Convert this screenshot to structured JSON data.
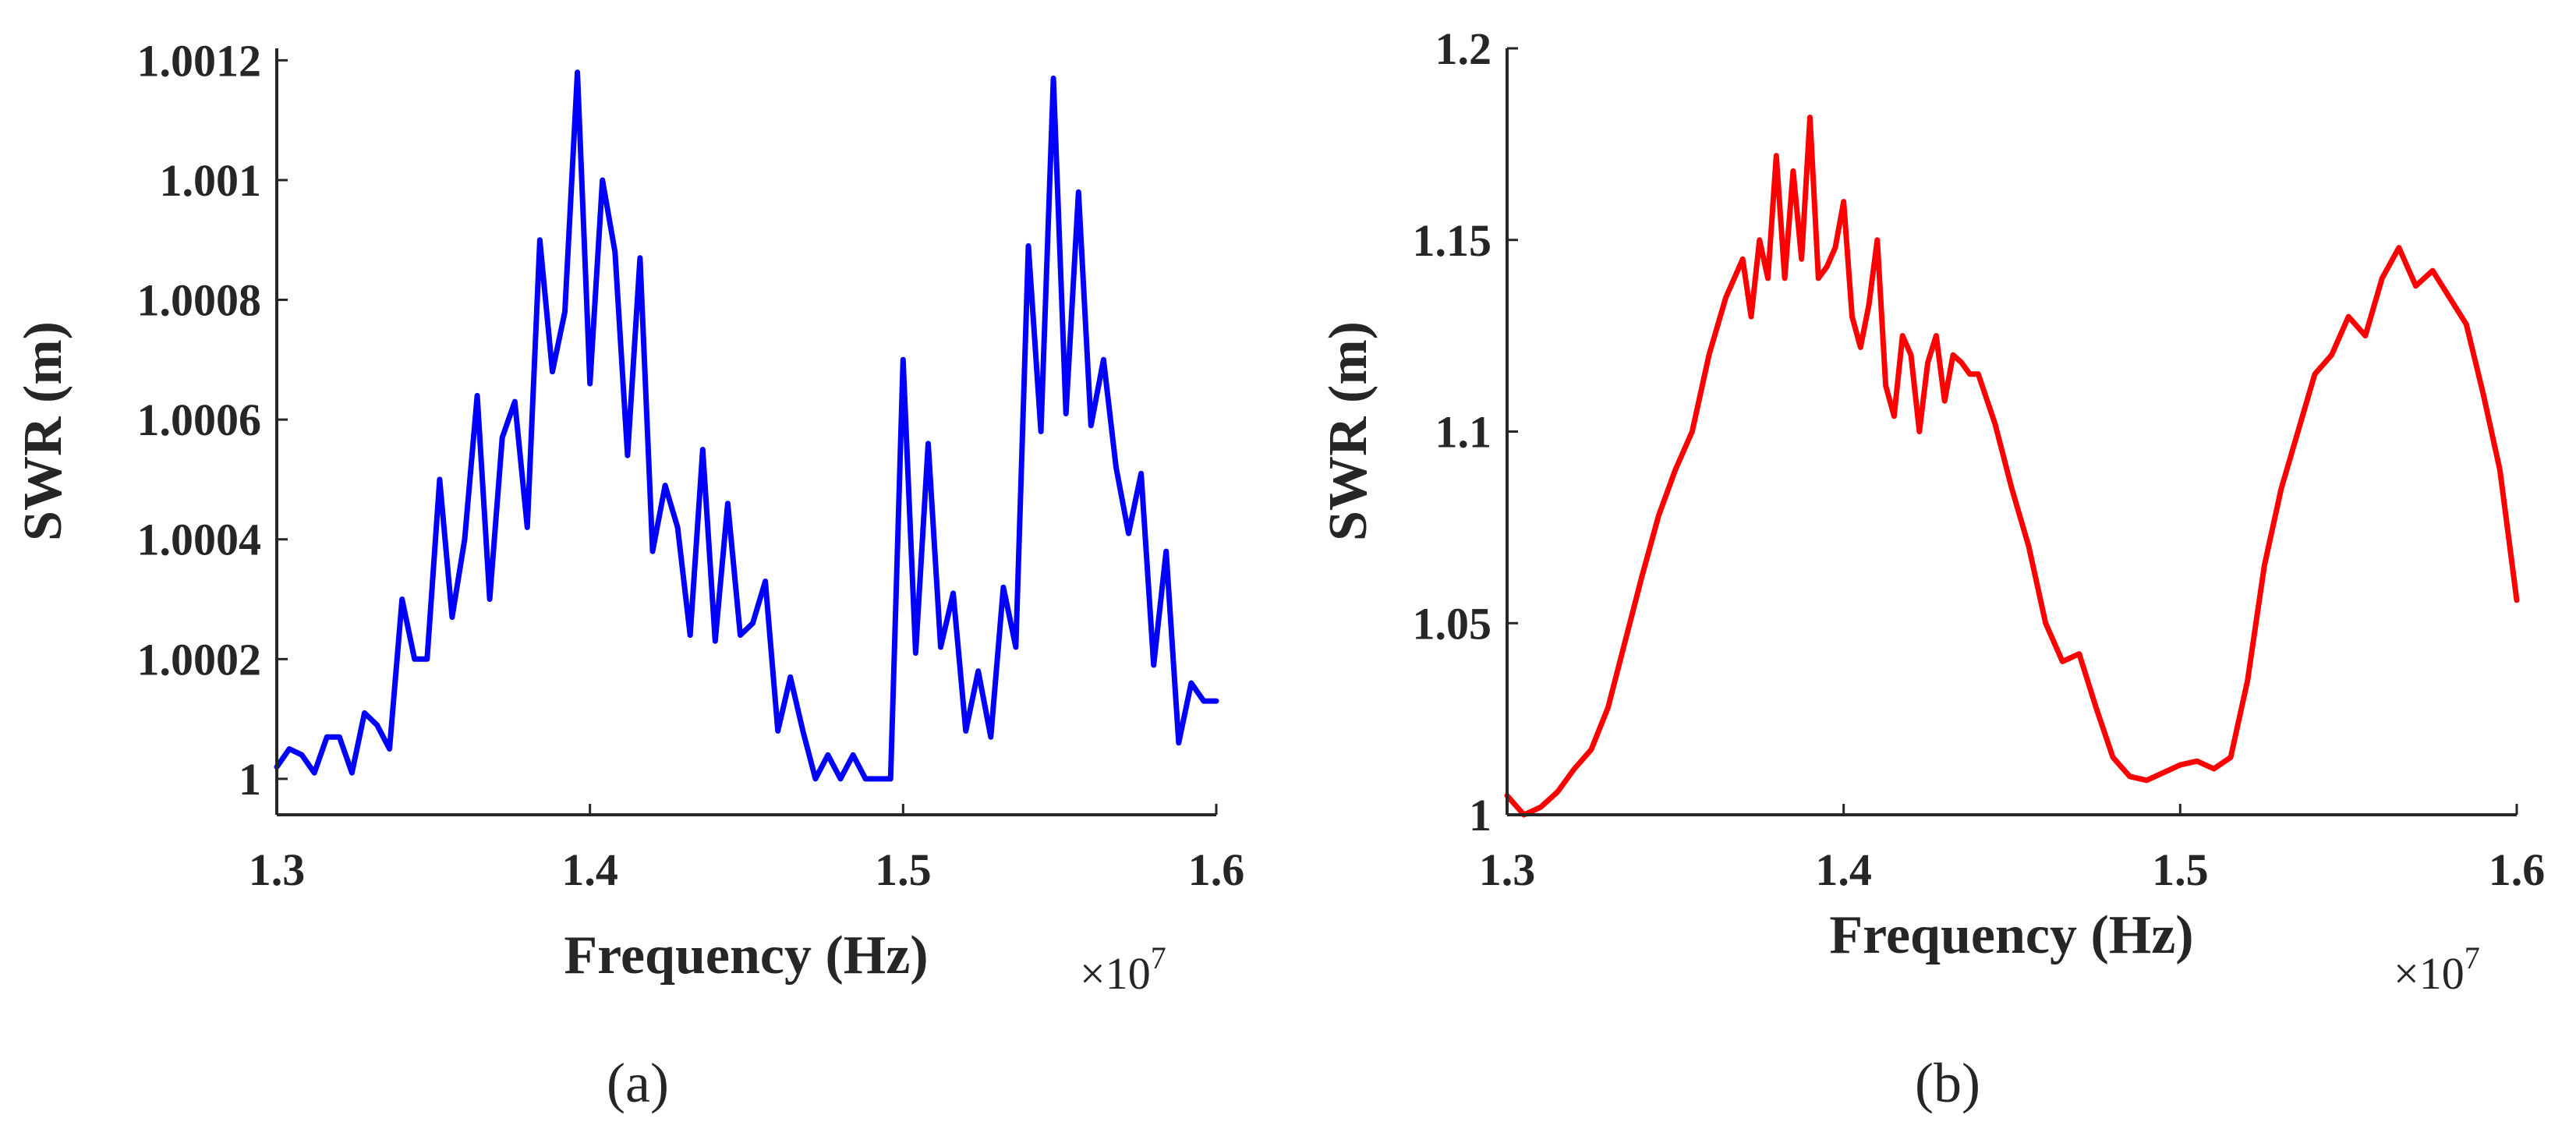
{
  "chart_data": [
    {
      "type": "line",
      "panel_label": "(a)",
      "xlabel": "Frequency (Hz)",
      "ylabel": "SWR (m)",
      "x_multiplier": "×10",
      "x_multiplier_exp": "7",
      "xlim": [
        13000000,
        16000000
      ],
      "ylim": [
        0.99994,
        1.00122
      ],
      "xticks": [
        13000000,
        14000000,
        15000000,
        16000000
      ],
      "xtick_labels": [
        "1.3",
        "1.4",
        "1.5",
        "1.6"
      ],
      "yticks": [
        1.0,
        1.0002,
        1.0004,
        1.0006,
        1.0008,
        1.001,
        1.0012
      ],
      "ytick_labels": [
        "1",
        "1.0002",
        "1.0004",
        "1.0006",
        "1.0008",
        "1.001",
        "1.0012"
      ],
      "line_color": "#0000ff",
      "series": [
        {
          "x": [
            13000000,
            13040000,
            13080000,
            13120000,
            13160000,
            13200000,
            13240000,
            13280000,
            13320000,
            13360000,
            13400000,
            13440000,
            13480000,
            13520000,
            13560000,
            13600000,
            13640000,
            13680000,
            13720000,
            13760000,
            13800000,
            13840000,
            13880000,
            13920000,
            13960000,
            14000000,
            14040000,
            14080000,
            14120000,
            14160000,
            14200000,
            14240000,
            14280000,
            14320000,
            14360000,
            14400000,
            14440000,
            14480000,
            14520000,
            14560000,
            14600000,
            14640000,
            14680000,
            14720000,
            14760000,
            14800000,
            14840000,
            14880000,
            14920000,
            14960000,
            15000000,
            15040000,
            15080000,
            15120000,
            15160000,
            15200000,
            15240000,
            15280000,
            15320000,
            15360000,
            15400000,
            15440000,
            15480000,
            15520000,
            15560000,
            15600000,
            15640000,
            15680000,
            15720000,
            15760000,
            15800000,
            15840000,
            15880000,
            15920000,
            15960000,
            16000000
          ],
          "y": [
            1.00002,
            1.00005,
            1.00004,
            1.00001,
            1.00007,
            1.00007,
            1.00001,
            1.00011,
            1.00009,
            1.00005,
            1.0003,
            1.0002,
            1.0002,
            1.0005,
            1.00027,
            1.0004,
            1.00064,
            1.0003,
            1.00057,
            1.00063,
            1.00042,
            1.0009,
            1.00068,
            1.00078,
            1.00118,
            1.00066,
            1.001,
            1.00088,
            1.00054,
            1.00087,
            1.00038,
            1.00049,
            1.00042,
            1.00024,
            1.00055,
            1.00023,
            1.00046,
            1.00024,
            1.00026,
            1.00033,
            1.00008,
            1.00017,
            1.00008,
            1.0,
            1.00004,
            1.0,
            1.00004,
            1.0,
            1.0,
            1.0,
            1.0007,
            1.00021,
            1.00056,
            1.00022,
            1.00031,
            1.00008,
            1.00018,
            1.00007,
            1.00032,
            1.00022,
            1.00089,
            1.00058,
            1.00117,
            1.00061,
            1.00098,
            1.00059,
            1.0007,
            1.00052,
            1.00041,
            1.00051,
            1.00019,
            1.00038,
            1.00006,
            1.00016,
            1.00013,
            1.00013
          ]
        }
      ]
    },
    {
      "type": "line",
      "panel_label": "(b)",
      "xlabel": "Frequency (Hz)",
      "ylabel": "SWR (m)",
      "x_multiplier": "×10",
      "x_multiplier_exp": "7",
      "xlim": [
        13000000,
        16000000
      ],
      "ylim": [
        1.0,
        1.2
      ],
      "xticks": [
        13000000,
        14000000,
        15000000,
        16000000
      ],
      "xtick_labels": [
        "1.3",
        "1.4",
        "1.5",
        "1.6"
      ],
      "yticks": [
        1.0,
        1.05,
        1.1,
        1.15,
        1.2
      ],
      "ytick_labels": [
        "1",
        "1.05",
        "1.1",
        "1.15",
        "1.2"
      ],
      "line_color": "#ff0000",
      "series": [
        {
          "x": [
            13000000,
            13050000,
            13100000,
            13150000,
            13200000,
            13250000,
            13300000,
            13350000,
            13400000,
            13450000,
            13500000,
            13550000,
            13600000,
            13650000,
            13700000,
            13725000,
            13750000,
            13775000,
            13800000,
            13825000,
            13850000,
            13875000,
            13900000,
            13925000,
            13950000,
            13975000,
            14000000,
            14025000,
            14050000,
            14075000,
            14100000,
            14125000,
            14150000,
            14175000,
            14200000,
            14225000,
            14250000,
            14275000,
            14300000,
            14325000,
            14350000,
            14375000,
            14400000,
            14450000,
            14500000,
            14550000,
            14600000,
            14650000,
            14700000,
            14750000,
            14800000,
            14850000,
            14900000,
            14950000,
            15000000,
            15050000,
            15100000,
            15150000,
            15200000,
            15250000,
            15300000,
            15350000,
            15400000,
            15450000,
            15500000,
            15550000,
            15600000,
            15650000,
            15700000,
            15750000,
            15800000,
            15850000,
            15900000,
            15950000,
            16000000
          ],
          "y": [
            1.005,
            1.0,
            1.002,
            1.006,
            1.012,
            1.017,
            1.028,
            1.045,
            1.062,
            1.078,
            1.09,
            1.1,
            1.12,
            1.135,
            1.145,
            1.13,
            1.15,
            1.14,
            1.172,
            1.14,
            1.168,
            1.145,
            1.182,
            1.14,
            1.143,
            1.148,
            1.16,
            1.13,
            1.122,
            1.133,
            1.15,
            1.112,
            1.104,
            1.125,
            1.12,
            1.1,
            1.118,
            1.125,
            1.108,
            1.12,
            1.118,
            1.115,
            1.115,
            1.102,
            1.085,
            1.07,
            1.05,
            1.04,
            1.042,
            1.028,
            1.015,
            1.01,
            1.009,
            1.011,
            1.013,
            1.014,
            1.012,
            1.015,
            1.035,
            1.065,
            1.085,
            1.1,
            1.115,
            1.12,
            1.13,
            1.125,
            1.14,
            1.148,
            1.138,
            1.142,
            1.135,
            1.128,
            1.11,
            1.09,
            1.056
          ]
        }
      ]
    }
  ]
}
